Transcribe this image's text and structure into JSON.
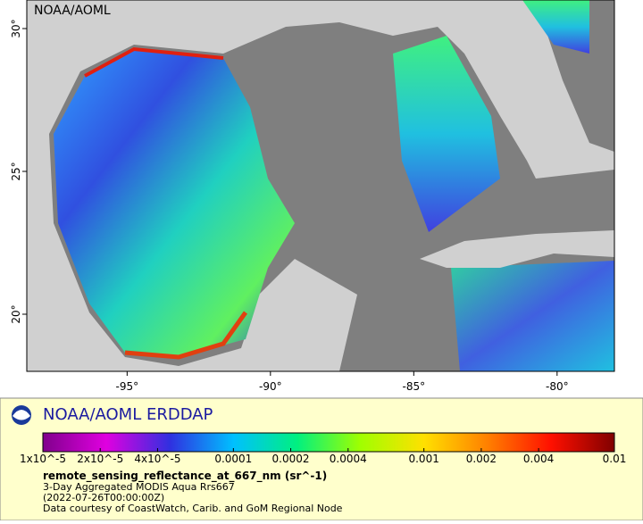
{
  "map": {
    "watermark": "NOAA/AOML",
    "xlim": [
      -98.5,
      -78
    ],
    "ylim": [
      18,
      31
    ],
    "xticks": [
      {
        "value": -95,
        "label": "-95°"
      },
      {
        "value": -90,
        "label": "-90°"
      },
      {
        "value": -85,
        "label": "-85°"
      },
      {
        "value": -80,
        "label": "-80°"
      }
    ],
    "yticks": [
      {
        "value": 20,
        "label": "20°"
      },
      {
        "value": 25,
        "label": "25°"
      },
      {
        "value": 30,
        "label": "30°"
      }
    ]
  },
  "footer": {
    "title": "NOAA/AOML ERDDAP",
    "colorbar": {
      "scale": "log",
      "lim": [
        1e-05,
        0.01
      ],
      "colors": [
        "#80008c",
        "#e000e0",
        "#3030e0",
        "#00c0ff",
        "#00f080",
        "#a0ff00",
        "#ffe000",
        "#ff8000",
        "#ff1000",
        "#800000"
      ],
      "ticks": [
        {
          "value": 1e-05,
          "label": "1x10^-5"
        },
        {
          "value": 2e-05,
          "label": "2x10^-5"
        },
        {
          "value": 4e-05,
          "label": "4x10^-5"
        },
        0.0001,
        0.0002,
        0.0004,
        0.001,
        0.002,
        0.004,
        0.01
      ]
    },
    "variable": "remote_sensing_reflectance_at_667_nm (sr^-1)",
    "dataset": "3-Day Aggregated MODIS Aqua Rrs667",
    "time": "(2022-07-26T00:00:00Z)",
    "credit": "Data courtesy of CoastWatch, Carib. and GoM Regional Node"
  }
}
